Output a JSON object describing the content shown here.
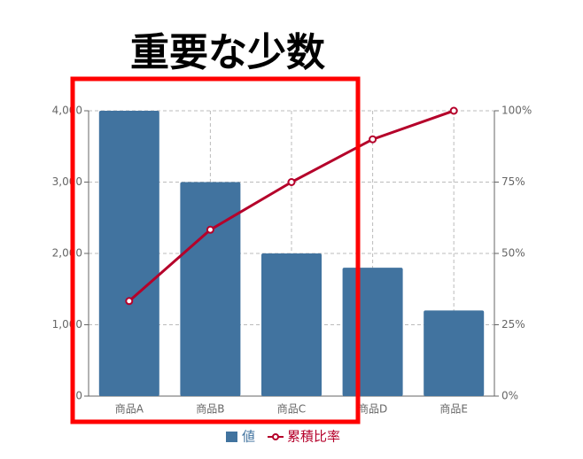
{
  "chart_data": {
    "type": "pareto",
    "title": "重要な少数",
    "categories": [
      "商品A",
      "商品B",
      "商品C",
      "商品D",
      "商品E"
    ],
    "series": [
      {
        "name": "値",
        "color": "#41739f",
        "values": [
          4000,
          3000,
          2000,
          1800,
          1200
        ]
      },
      {
        "name": "累積比率",
        "color": "#b5002a",
        "axis": "y2",
        "values": [
          33.3,
          58.3,
          75,
          90,
          100
        ]
      }
    ],
    "ylim": [
      0,
      4000
    ],
    "yticks": [
      0,
      {
        "value": 1000,
        "label": "1,000"
      },
      {
        "value": 2000,
        "label": "2,000"
      },
      {
        "value": 3000,
        "label": "3,000"
      },
      {
        "value": 4000,
        "label": "4,000"
      }
    ],
    "y2lim": [
      0,
      100
    ],
    "y2ticks": [
      {
        "value": 0,
        "label": "0%"
      },
      {
        "value": 25,
        "label": "25%"
      },
      {
        "value": 50,
        "label": "50%"
      },
      {
        "value": 75,
        "label": "75%"
      },
      {
        "value": 100,
        "label": "100%"
      }
    ],
    "grid": true,
    "legend": "bottom"
  }
}
